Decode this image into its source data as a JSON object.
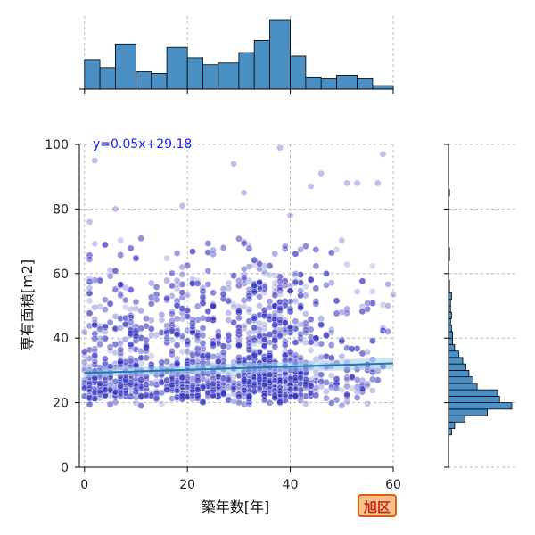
{
  "chart_data": {
    "type": "scatter",
    "title": "",
    "xlabel": "築年数[年]",
    "ylabel": "専有面積[m2]",
    "xlim": [
      -1,
      60
    ],
    "ylim": [
      0,
      100
    ],
    "x_ticks": [
      0,
      20,
      40,
      60
    ],
    "y_ticks": [
      0,
      20,
      40,
      60,
      80,
      100
    ],
    "grid": true,
    "regression": {
      "slope": 0.05,
      "intercept": 29.18,
      "label": "y=0.05x+29.18"
    },
    "badge": "旭区",
    "point_color": "#3030c0",
    "line_color": "#1f77b4",
    "hist_color": "#4a90c4",
    "x_histogram": {
      "bin_edges": [
        0,
        3,
        6,
        10,
        13,
        16,
        20,
        23,
        26,
        30,
        33,
        36,
        40,
        43,
        46,
        49,
        53,
        56,
        60
      ],
      "counts": [
        85,
        62,
        130,
        50,
        45,
        120,
        90,
        70,
        75,
        105,
        140,
        200,
        95,
        35,
        30,
        40,
        30,
        10
      ]
    },
    "y_histogram": {
      "bin_edges": [
        10,
        12,
        14,
        16,
        18,
        20,
        22,
        24,
        26,
        28,
        30,
        32,
        34,
        36,
        38,
        40,
        42,
        44,
        46,
        48,
        50,
        52,
        54,
        56,
        58,
        60,
        62,
        64,
        66,
        68,
        70,
        72,
        74,
        76,
        78,
        80,
        82,
        84,
        86,
        88,
        90,
        92,
        94,
        96,
        98,
        100
      ],
      "counts": [
        3,
        6,
        16,
        38,
        62,
        50,
        48,
        28,
        24,
        20,
        17,
        14,
        10,
        6,
        4,
        4,
        3,
        2,
        3,
        2,
        2,
        3,
        1,
        1,
        0,
        0,
        0,
        1,
        1,
        0,
        0,
        0,
        0,
        0,
        0,
        0,
        0,
        1,
        0,
        0,
        0,
        0,
        0,
        0,
        0,
        0
      ]
    },
    "points_seed": 7,
    "points_count": 1500,
    "outliers": [
      {
        "x": 2,
        "y": 95
      },
      {
        "x": 29,
        "y": 94
      },
      {
        "x": 38,
        "y": 99
      },
      {
        "x": 19,
        "y": 81
      },
      {
        "x": 40,
        "y": 78
      },
      {
        "x": 6,
        "y": 80
      },
      {
        "x": 46,
        "y": 91
      },
      {
        "x": 51,
        "y": 88
      },
      {
        "x": 58,
        "y": 97
      },
      {
        "x": 31,
        "y": 85
      },
      {
        "x": 44,
        "y": 87
      },
      {
        "x": 1,
        "y": 76
      },
      {
        "x": 57,
        "y": 88
      },
      {
        "x": 53,
        "y": 88
      }
    ]
  }
}
